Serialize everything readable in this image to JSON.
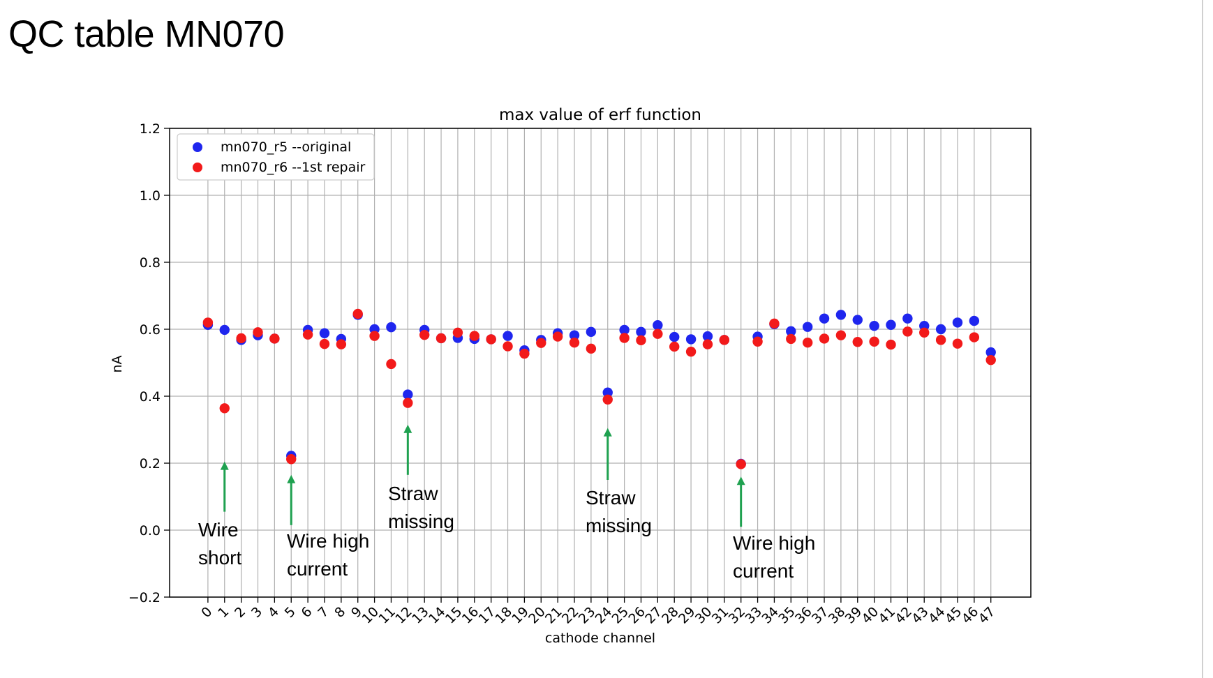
{
  "slide": {
    "title": "QC table MN070"
  },
  "chart_data": {
    "type": "scatter",
    "title": "max value of erf function",
    "xlabel": "cathode channel",
    "ylabel": "nA",
    "xlim": [
      -2.3,
      49.4
    ],
    "ylim": [
      -0.2,
      1.2
    ],
    "yticks": [
      "−0.2",
      "0.0",
      "0.2",
      "0.4",
      "0.6",
      "0.8",
      "1.0",
      "1.2"
    ],
    "ytick_values": [
      -0.2,
      0.0,
      0.2,
      0.4,
      0.6,
      0.8,
      1.0,
      1.2
    ],
    "xticks": [
      "0",
      "1",
      "2",
      "3",
      "4",
      "5",
      "6",
      "7",
      "8",
      "9",
      "10",
      "11",
      "12",
      "13",
      "14",
      "15",
      "16",
      "17",
      "18",
      "19",
      "20",
      "21",
      "22",
      "23",
      "24",
      "25",
      "26",
      "27",
      "28",
      "29",
      "30",
      "31",
      "32",
      "33",
      "34",
      "35",
      "36",
      "37",
      "38",
      "39",
      "40",
      "41",
      "42",
      "43",
      "44",
      "45",
      "46",
      "47"
    ],
    "x": [
      0,
      1,
      2,
      3,
      4,
      5,
      6,
      7,
      8,
      9,
      10,
      11,
      12,
      13,
      14,
      15,
      16,
      17,
      18,
      19,
      20,
      21,
      22,
      23,
      24,
      25,
      26,
      27,
      28,
      29,
      30,
      31,
      32,
      33,
      34,
      35,
      36,
      37,
      38,
      39,
      40,
      41,
      42,
      43,
      44,
      45,
      46,
      47
    ],
    "grid": true,
    "legend_position": "top-left",
    "series": [
      {
        "name": "mn070_r5 --original",
        "color": "#1f26ee",
        "values": [
          0.613,
          0.598,
          0.568,
          0.582,
          0.572,
          0.222,
          0.598,
          0.588,
          0.571,
          0.643,
          0.6,
          0.606,
          0.405,
          0.598,
          0.573,
          0.574,
          0.571,
          0.57,
          0.58,
          0.537,
          0.568,
          0.588,
          0.582,
          0.592,
          0.411,
          0.598,
          0.592,
          0.612,
          0.577,
          0.57,
          0.579,
          0.568,
          0.198,
          0.578,
          0.615,
          0.594,
          0.607,
          0.632,
          0.643,
          0.628,
          0.61,
          0.613,
          0.632,
          0.61,
          0.6,
          0.62,
          0.625,
          0.531
        ]
      },
      {
        "name": "mn070_r6 --1st repair",
        "color": "#f21a1a",
        "values": [
          0.62,
          0.364,
          0.573,
          0.591,
          0.572,
          0.212,
          0.584,
          0.556,
          0.555,
          0.646,
          0.58,
          0.496,
          0.38,
          0.583,
          0.573,
          0.59,
          0.58,
          0.57,
          0.549,
          0.527,
          0.559,
          0.578,
          0.56,
          0.542,
          0.39,
          0.574,
          0.567,
          0.586,
          0.548,
          0.533,
          0.555,
          0.568,
          0.197,
          0.563,
          0.617,
          0.571,
          0.56,
          0.572,
          0.582,
          0.562,
          0.563,
          0.554,
          0.593,
          0.59,
          0.568,
          0.557,
          0.576,
          0.508
        ]
      }
    ],
    "annotations": [
      {
        "x": 1,
        "y_tail": 0.055,
        "y_head": 0.205,
        "lines": [
          "Wire",
          "short"
        ]
      },
      {
        "x": 5,
        "y_tail": 0.015,
        "y_head": 0.165,
        "lines": [
          "Wire high",
          "current"
        ]
      },
      {
        "x": 12,
        "y_tail": 0.165,
        "y_head": 0.315,
        "lines": [
          "Straw",
          "missing"
        ]
      },
      {
        "x": 24,
        "y_tail": 0.15,
        "y_head": 0.305,
        "lines": [
          "Straw",
          "missing"
        ]
      },
      {
        "x": 32,
        "y_tail": 0.01,
        "y_head": 0.16,
        "lines": [
          "Wire high",
          "current"
        ]
      }
    ],
    "annotation_arrow_color": "#1fa150"
  }
}
